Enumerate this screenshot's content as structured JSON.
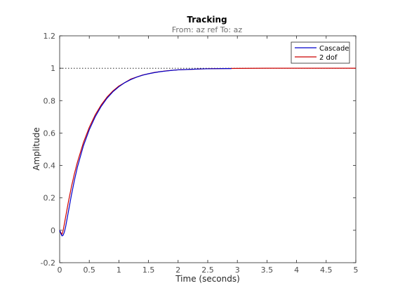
{
  "chart_data": {
    "type": "line",
    "title": "Tracking",
    "subtitle": "From: az ref  To: az",
    "xlabel": "Time (seconds)",
    "ylabel": "Amplitude",
    "xlim": [
      0,
      5
    ],
    "ylim": [
      -0.2,
      1.2
    ],
    "xticks": [
      0,
      0.5,
      1,
      1.5,
      2,
      2.5,
      3,
      3.5,
      4,
      4.5,
      5
    ],
    "xtick_labels": [
      "0",
      "0.5",
      "1",
      "1.5",
      "2",
      "2.5",
      "3",
      "3.5",
      "4",
      "4.5",
      "5"
    ],
    "yticks": [
      -0.2,
      0,
      0.2,
      0.4,
      0.6,
      0.8,
      1,
      1.2
    ],
    "ytick_labels": [
      "-0.2",
      "0",
      "0.2",
      "0.4",
      "0.6",
      "0.8",
      "1",
      "1.2"
    ],
    "grid": false,
    "legend_position": "top-right",
    "reference_line": {
      "y": 1,
      "style": "dotted",
      "color": "#000000"
    },
    "series": [
      {
        "name": "Cascade",
        "color": "#0000cc",
        "x": [
          0,
          0.02,
          0.04,
          0.06,
          0.08,
          0.1,
          0.12,
          0.15,
          0.2,
          0.25,
          0.3,
          0.4,
          0.5,
          0.6,
          0.7,
          0.8,
          0.9,
          1.0,
          1.1,
          1.2,
          1.3,
          1.4,
          1.5,
          1.6,
          1.7,
          1.8,
          1.9,
          2.0,
          2.2,
          2.4,
          2.6,
          2.8,
          2.9
        ],
        "y": [
          0,
          -0.02,
          -0.035,
          -0.03,
          -0.01,
          0.02,
          0.06,
          0.12,
          0.22,
          0.31,
          0.39,
          0.52,
          0.62,
          0.7,
          0.764,
          0.815,
          0.855,
          0.886,
          0.911,
          0.93,
          0.945,
          0.957,
          0.966,
          0.973,
          0.979,
          0.983,
          0.987,
          0.99,
          0.993,
          0.996,
          0.997,
          0.998,
          0.998
        ]
      },
      {
        "name": "2 dof",
        "color": "#cc0000",
        "x": [
          0,
          0.02,
          0.04,
          0.06,
          0.08,
          0.1,
          0.12,
          0.15,
          0.2,
          0.25,
          0.3,
          0.4,
          0.5,
          0.6,
          0.7,
          0.8,
          0.9,
          1.0,
          1.2,
          1.4,
          1.6,
          1.8,
          2.0,
          2.5,
          3.0,
          3.5,
          4.0,
          4.5,
          5.0
        ],
        "y": [
          0,
          -0.015,
          -0.025,
          0.0,
          0.04,
          0.08,
          0.12,
          0.18,
          0.27,
          0.35,
          0.42,
          0.54,
          0.635,
          0.712,
          0.773,
          0.822,
          0.86,
          0.89,
          0.933,
          0.958,
          0.974,
          0.984,
          0.99,
          0.997,
          0.999,
          1.0,
          1.0,
          1.0,
          1.0
        ]
      }
    ]
  }
}
